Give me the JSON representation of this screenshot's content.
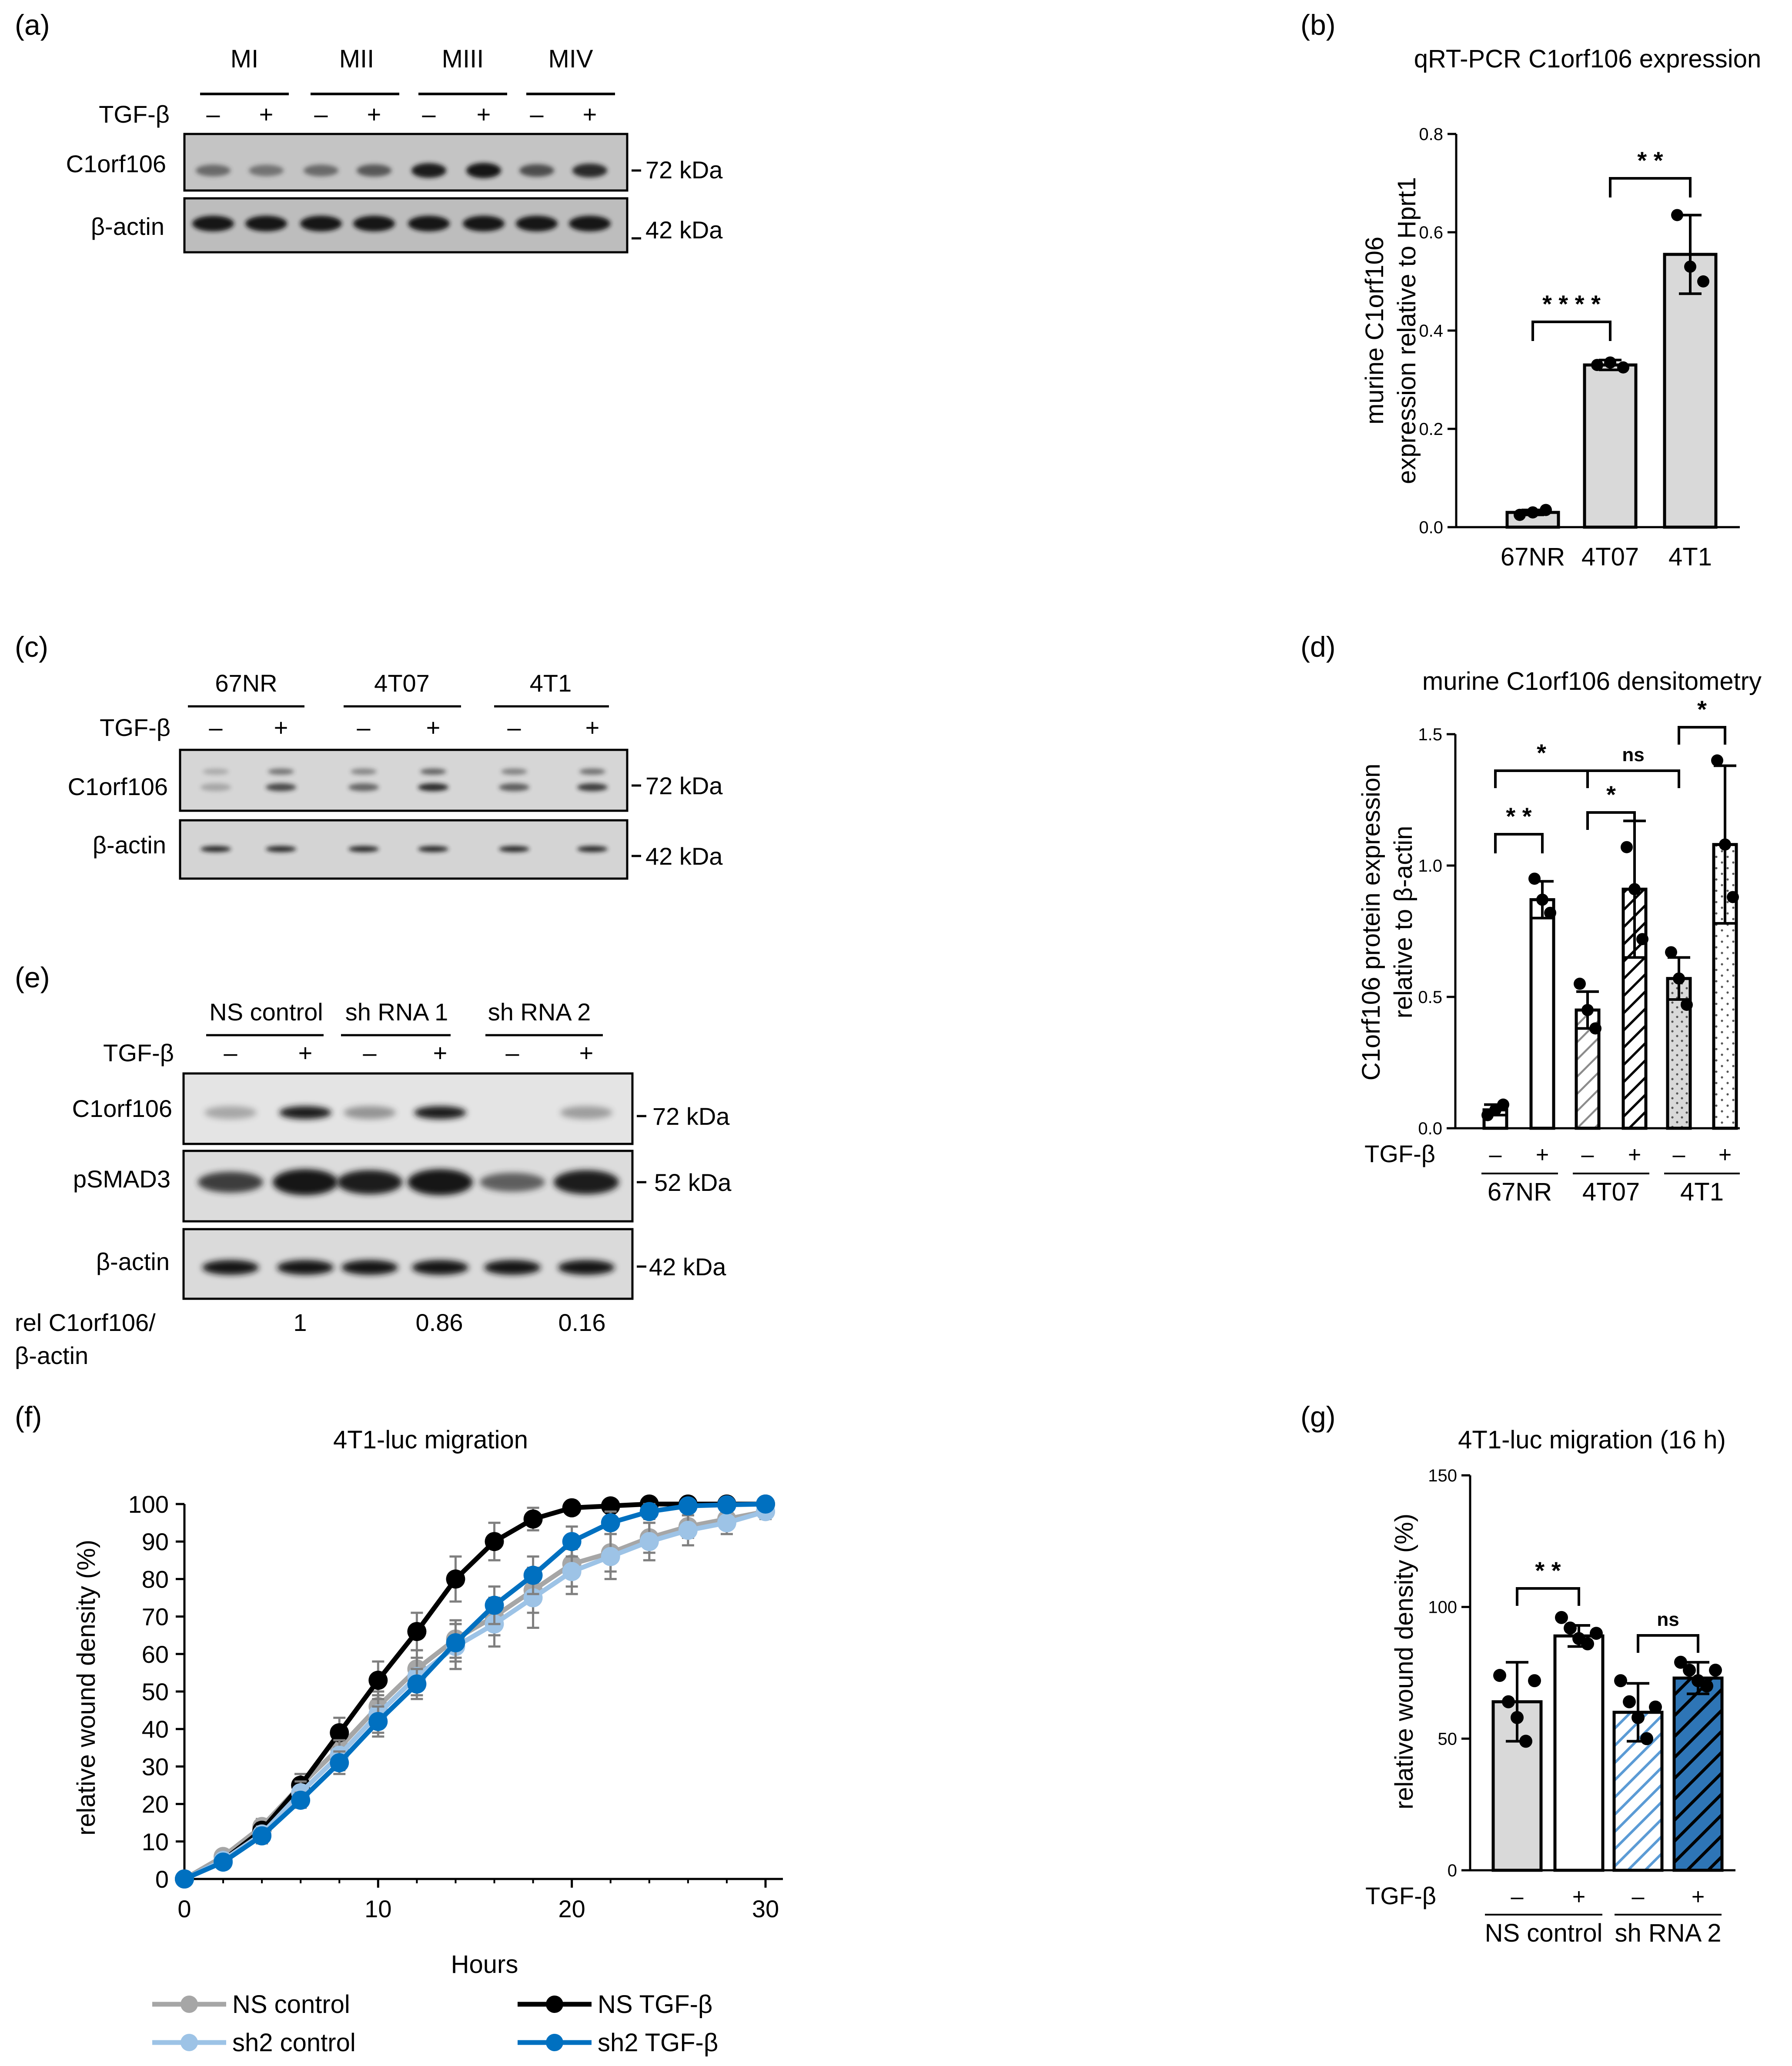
{
  "panel_labels": {
    "a": "(a)",
    "b": "(b)",
    "c": "(c)",
    "d": "(d)",
    "e": "(e)",
    "f": "(f)",
    "g": "(g)"
  },
  "blot_a": {
    "groups": [
      "MI",
      "MII",
      "MIII",
      "MIV"
    ],
    "treatment_label": "TGF-β",
    "minus": "–",
    "plus": "+",
    "row_labels": [
      "C1orf106",
      "β-actin"
    ],
    "markers": [
      "72 kDa",
      "42 kDa"
    ],
    "band_intensity_c1orf106": [
      0.35,
      0.3,
      0.35,
      0.45,
      0.85,
      0.95,
      0.5,
      0.7
    ]
  },
  "blot_c": {
    "groups": [
      "67NR",
      "4T07",
      "4T1"
    ],
    "treatment_label": "TGF-β",
    "minus": "–",
    "plus": "+",
    "row_labels": [
      "C1orf106",
      "β-actin"
    ],
    "markers": [
      "72 kDa",
      "42 kDa"
    ],
    "band_intensity_c1orf106": [
      0.05,
      0.55,
      0.4,
      0.7,
      0.45,
      0.6
    ]
  },
  "blot_e": {
    "groups": [
      "NS control",
      "sh RNA 1",
      "sh RNA 2"
    ],
    "treatment_label": "TGF-β",
    "minus": "–",
    "plus": "+",
    "row_labels": [
      "C1orf106",
      "pSMAD3",
      "β-actin"
    ],
    "markers": [
      "72 kDa",
      "52 kDa",
      "42 kDa"
    ],
    "band_intensity_c1orf106": [
      0.1,
      0.75,
      0.2,
      0.8,
      0.0,
      0.15
    ],
    "band_intensity_psmad3": [
      0.6,
      1.0,
      0.85,
      1.0,
      0.45,
      0.85
    ],
    "ratio_label_line1": "rel C1orf106/",
    "ratio_label_line2": "β-actin",
    "ratios": [
      "1",
      "0.86",
      "0.16"
    ]
  },
  "chart_data": [
    {
      "id": "b",
      "type": "bar",
      "title": "qRT-PCR C1orf106 expression",
      "ylabel_line1": "murine C1orf106",
      "ylabel_line2": "expression relative to Hprt1",
      "categories": [
        "67NR",
        "4T07",
        "4T1"
      ],
      "values": [
        0.03,
        0.33,
        0.555
      ],
      "errors": [
        0.005,
        0.01,
        0.08
      ],
      "points": [
        [
          0.025,
          0.03,
          0.035
        ],
        [
          0.33,
          0.335,
          0.325
        ],
        [
          0.635,
          0.53,
          0.5
        ]
      ],
      "ylim": [
        0,
        0.8
      ],
      "yticks": [
        "0.0",
        "0.2",
        "0.4",
        "0.6",
        "0.8"
      ],
      "significance": [
        {
          "from": 0,
          "to": 1,
          "label": "* * * *"
        },
        {
          "from": 1,
          "to": 2,
          "label": "* *"
        }
      ],
      "bar_color": "#d9d9d9"
    },
    {
      "id": "d",
      "type": "bar",
      "title": "murine C1orf106 densitometry",
      "ylabel_line1": "C1orf106 protein expression",
      "ylabel_line2": "relative to β-actin",
      "treatment_label": "TGF-β",
      "treatments": [
        "–",
        "+",
        "–",
        "+",
        "–",
        "+"
      ],
      "groups": [
        "67NR",
        "4T07",
        "4T1"
      ],
      "values": [
        0.07,
        0.87,
        0.45,
        0.91,
        0.57,
        1.08
      ],
      "errors": [
        0.02,
        0.07,
        0.07,
        0.26,
        0.08,
        0.3
      ],
      "points": [
        [
          0.05,
          0.07,
          0.09
        ],
        [
          0.95,
          0.87,
          0.82
        ],
        [
          0.55,
          0.45,
          0.38
        ],
        [
          1.07,
          0.91,
          0.72
        ],
        [
          0.67,
          0.57,
          0.47
        ],
        [
          1.4,
          1.08,
          0.88
        ]
      ],
      "patterns": [
        "solid",
        "solid",
        "hatch",
        "hatch",
        "dots",
        "dots"
      ],
      "fills": [
        "#ffffff",
        "#ffffff",
        "#bfbfbf",
        "#ffffff",
        "#d9d9d9",
        "#ffffff"
      ],
      "ylim": [
        0,
        1.5
      ],
      "yticks": [
        "0.0",
        "0.5",
        "1.0",
        "1.5"
      ],
      "significance": [
        {
          "from": 0,
          "to": 1,
          "label": "* *"
        },
        {
          "from": 2,
          "to": 3,
          "label": "*"
        },
        {
          "from": 4,
          "to": 5,
          "label": "*"
        },
        {
          "from": 0,
          "to": 2,
          "label": "*"
        },
        {
          "from": 2,
          "to": 4,
          "label": "ns"
        }
      ]
    },
    {
      "id": "f",
      "type": "line",
      "title": "4T1-luc migration",
      "xlabel": "Hours",
      "ylabel": "relative wound density (%)",
      "xlim": [
        0,
        30
      ],
      "ylim": [
        0,
        100
      ],
      "xticks": [
        "0",
        "10",
        "20",
        "30"
      ],
      "yticks": [
        "0",
        "10",
        "20",
        "30",
        "40",
        "50",
        "60",
        "70",
        "80",
        "90",
        "100"
      ],
      "x": [
        0,
        2,
        4,
        6,
        8,
        10,
        12,
        14,
        16,
        18,
        20,
        22,
        24,
        26,
        28,
        30
      ],
      "series": [
        {
          "name": "NS control",
          "color": "#a6a6a6",
          "values": [
            0,
            6,
            14,
            25,
            35,
            46,
            56,
            64,
            70,
            77,
            84,
            87,
            91,
            94,
            96,
            98
          ],
          "err": [
            0.5,
            1,
            2,
            3,
            3,
            4,
            5,
            5,
            5,
            6,
            6,
            5,
            4,
            3,
            2,
            1
          ]
        },
        {
          "name": "NS  TGF-β",
          "color": "#000000",
          "values": [
            0,
            5,
            13,
            25,
            39,
            53,
            66,
            80,
            90,
            96,
            99,
            99.5,
            100,
            100,
            100,
            100
          ],
          "err": [
            0.5,
            1,
            2,
            3,
            4,
            5,
            5,
            6,
            5,
            3,
            1,
            0.5,
            0,
            0,
            0,
            0
          ]
        },
        {
          "name": "sh2 control",
          "color": "#9dc3e6",
          "values": [
            0,
            5,
            12,
            23,
            33,
            44,
            54,
            62,
            68,
            75,
            82,
            86,
            90,
            93,
            95,
            98
          ],
          "err": [
            0.5,
            1,
            2,
            3,
            4,
            5,
            5,
            6,
            6,
            8,
            6,
            6,
            5,
            4,
            3,
            2
          ]
        },
        {
          "name": "sh2 TGF-β",
          "color": "#0070c0",
          "values": [
            0,
            4.5,
            11.5,
            21,
            31,
            42,
            52,
            63,
            73,
            81,
            90,
            95,
            98,
            99.5,
            99.8,
            100
          ],
          "err": [
            0.5,
            1,
            2,
            2,
            3,
            4,
            4,
            5,
            5,
            5,
            4,
            3,
            2,
            1,
            0.5,
            0
          ]
        }
      ]
    },
    {
      "id": "g",
      "type": "bar",
      "title": "4T1-luc migration (16 h)",
      "ylabel": "relative wound density (%)",
      "treatment_label": "TGF-β",
      "treatments": [
        "–",
        "+",
        "–",
        "+"
      ],
      "groups": [
        "NS control",
        "sh RNA 2"
      ],
      "values": [
        64,
        89,
        60,
        73
      ],
      "errors": [
        15,
        4,
        11,
        6
      ],
      "points": [
        [
          74,
          64,
          58,
          49,
          72
        ],
        [
          96,
          92,
          88,
          86,
          90
        ],
        [
          72,
          64,
          58,
          50,
          62
        ],
        [
          79,
          76,
          72,
          70,
          76
        ]
      ],
      "fills": [
        "#d9d9d9",
        "#ffffff",
        "#9dc3e6",
        "#2e75b6"
      ],
      "patterns": [
        "solid",
        "solid",
        "hatch",
        "hatch"
      ],
      "ylim": [
        0,
        150
      ],
      "yticks": [
        "0",
        "50",
        "100",
        "150"
      ],
      "significance": [
        {
          "from": 0,
          "to": 1,
          "label": "* *"
        },
        {
          "from": 2,
          "to": 3,
          "label": "ns"
        }
      ]
    }
  ]
}
